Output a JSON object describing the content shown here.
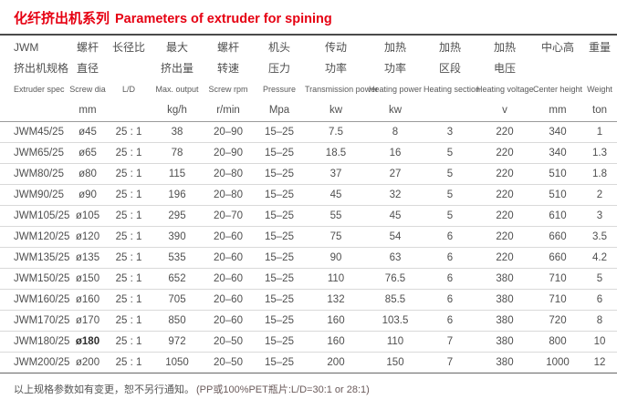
{
  "title": {
    "cn": "化纤挤出机系列",
    "en": "Parameters of extruder for spining"
  },
  "colors": {
    "title_red": "#e60012"
  },
  "table": {
    "columns": [
      {
        "cn1": "JWM",
        "cn2": "挤出机规格",
        "en": "Extruder spec",
        "unit": ""
      },
      {
        "cn1": "螺杆",
        "cn2": "直径",
        "en": "Screw dia",
        "unit": "mm"
      },
      {
        "cn1": "长径比",
        "cn2": "",
        "en": "L/D",
        "unit": ""
      },
      {
        "cn1": "最大",
        "cn2": "挤出量",
        "en": "Max. output",
        "unit": "kg/h"
      },
      {
        "cn1": "螺杆",
        "cn2": "转速",
        "en": "Screw rpm",
        "unit": "r/min"
      },
      {
        "cn1": "机头",
        "cn2": "压力",
        "en": "Pressure",
        "unit": "Mpa"
      },
      {
        "cn1": "传动",
        "cn2": "功率",
        "en": "Transmission power",
        "unit": "kw"
      },
      {
        "cn1": "加热",
        "cn2": "功率",
        "en": "Heating power",
        "unit": "kw"
      },
      {
        "cn1": "加热",
        "cn2": "区段",
        "en": "Heating section",
        "unit": ""
      },
      {
        "cn1": "加热",
        "cn2": "电压",
        "en": "Heating voltage",
        "unit": "v"
      },
      {
        "cn1": "中心高",
        "cn2": "",
        "en": "Center height",
        "unit": "mm"
      },
      {
        "cn1": "重量",
        "cn2": "",
        "en": "Weight",
        "unit": "ton"
      }
    ],
    "rows": [
      [
        "JWM45/25",
        "ø45",
        "25 : 1",
        "38",
        "20–90",
        "15–25",
        "7.5",
        "8",
        "3",
        "220",
        "340",
        "1"
      ],
      [
        "JWM65/25",
        "ø65",
        "25 : 1",
        "78",
        "20–90",
        "15–25",
        "18.5",
        "16",
        "5",
        "220",
        "340",
        "1.3"
      ],
      [
        "JWM80/25",
        "ø80",
        "25 : 1",
        "115",
        "20–80",
        "15–25",
        "37",
        "27",
        "5",
        "220",
        "510",
        "1.8"
      ],
      [
        "JWM90/25",
        "ø90",
        "25 : 1",
        "196",
        "20–80",
        "15–25",
        "45",
        "32",
        "5",
        "220",
        "510",
        "2"
      ],
      [
        "JWM105/25",
        "ø105",
        "25 : 1",
        "295",
        "20–70",
        "15–25",
        "55",
        "45",
        "5",
        "220",
        "610",
        "3"
      ],
      [
        "JWM120/25",
        "ø120",
        "25 : 1",
        "390",
        "20–60",
        "15–25",
        "75",
        "54",
        "6",
        "220",
        "660",
        "3.5"
      ],
      [
        "JWM135/25",
        "ø135",
        "25 : 1",
        "535",
        "20–60",
        "15–25",
        "90",
        "63",
        "6",
        "220",
        "660",
        "4.2"
      ],
      [
        "JWM150/25",
        "ø150",
        "25 : 1",
        "652",
        "20–60",
        "15–25",
        "110",
        "76.5",
        "6",
        "380",
        "710",
        "5"
      ],
      [
        "JWM160/25",
        "ø160",
        "25 : 1",
        "705",
        "20–60",
        "15–25",
        "132",
        "85.5",
        "6",
        "380",
        "710",
        "6"
      ],
      [
        "JWM170/25",
        "ø170",
        "25 : 1",
        "850",
        "20–60",
        "15–25",
        "160",
        "103.5",
        "6",
        "380",
        "720",
        "8"
      ],
      [
        "JWM180/25",
        "ø180",
        "25 : 1",
        "972",
        "20–50",
        "15–25",
        "160",
        "110",
        "7",
        "380",
        "800",
        "10"
      ],
      [
        "JWM200/25",
        "ø200",
        "25 : 1",
        "1050",
        "20–50",
        "15–25",
        "200",
        "150",
        "7",
        "380",
        "1000",
        "12"
      ]
    ],
    "bold_cells": [
      [
        10,
        1
      ]
    ]
  },
  "footer": {
    "note_cn": "以上规格参数如有变更，恕不另行通知。",
    "note_en": "(PP或100%PET瓶片:L/D=30:1 or 28:1)"
  }
}
